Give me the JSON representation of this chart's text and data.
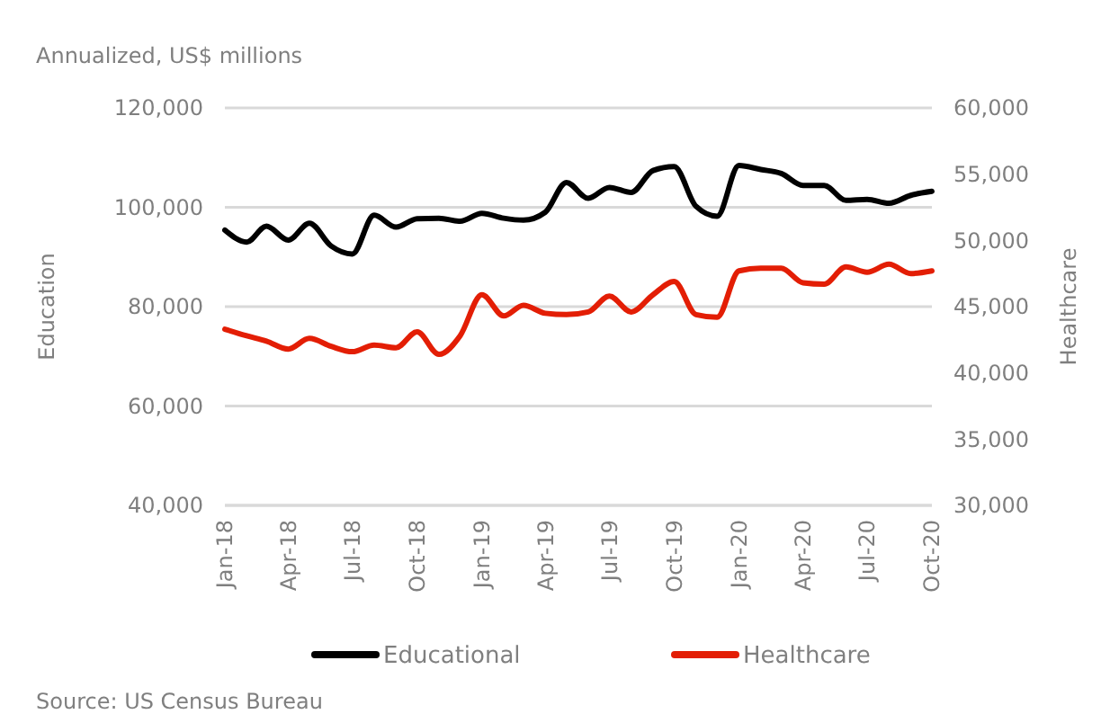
{
  "chart_data": {
    "type": "line",
    "title": "Annualized, US$ millions",
    "ylabel": "Education",
    "y2label": "Healthcare",
    "x": [
      "2018-01",
      "2018-02",
      "2018-03",
      "2018-04",
      "2018-05",
      "2018-06",
      "2018-07",
      "2018-08",
      "2018-09",
      "2018-10",
      "2018-11",
      "2018-12",
      "2019-01",
      "2019-02",
      "2019-03",
      "2019-04",
      "2019-05",
      "2019-06",
      "2019-07",
      "2019-08",
      "2019-09",
      "2019-10",
      "2019-11",
      "2019-12",
      "2020-01",
      "2020-02",
      "2020-03",
      "2020-04",
      "2020-05",
      "2020-06",
      "2020-07",
      "2020-08",
      "2020-09",
      "2020-10"
    ],
    "series": [
      {
        "name": "Educational",
        "color": "#000000",
        "values": [
          95400,
          93000,
          96200,
          93400,
          96800,
          92200,
          90600,
          98400,
          96000,
          97700,
          97800,
          97200,
          98800,
          97800,
          97400,
          99000,
          105000,
          101800,
          104000,
          103000,
          107400,
          108200,
          100200,
          98200,
          108400,
          107600,
          106800,
          104400,
          104400,
          101400,
          101600,
          100800,
          102400,
          103200
        ]
      },
      {
        "name": "Healthcare",
        "color": "#e31e05",
        "axis": "y2",
        "values": [
          43300,
          42800,
          42400,
          41800,
          42600,
          42000,
          41600,
          42100,
          41900,
          43100,
          41400,
          42800,
          45900,
          44300,
          45100,
          44500,
          44400,
          44600,
          45800,
          44600,
          45900,
          46900,
          44400,
          44200,
          47700,
          47900,
          47900,
          46800,
          46700,
          48000,
          47600,
          48200,
          47500,
          47700
        ]
      }
    ],
    "xlim": [
      "2018-01",
      "2020-10"
    ],
    "xticks": [
      {
        "value": "2018-01",
        "label": "Jan-18"
      },
      {
        "value": "2018-04",
        "label": "Apr-18"
      },
      {
        "value": "2018-07",
        "label": "Jul-18"
      },
      {
        "value": "2018-10",
        "label": "Oct-18"
      },
      {
        "value": "2019-01",
        "label": "Jan-19"
      },
      {
        "value": "2019-04",
        "label": "Apr-19"
      },
      {
        "value": "2019-07",
        "label": "Jul-19"
      },
      {
        "value": "2019-10",
        "label": "Oct-19"
      },
      {
        "value": "2020-01",
        "label": "Jan-20"
      },
      {
        "value": "2020-04",
        "label": "Apr-20"
      },
      {
        "value": "2020-07",
        "label": "Jul-20"
      },
      {
        "value": "2020-10",
        "label": "Oct-20"
      }
    ],
    "ylim": [
      40000,
      120000
    ],
    "yticks": [
      {
        "value": 40000,
        "label": "40,000"
      },
      {
        "value": 60000,
        "label": "60,000"
      },
      {
        "value": 80000,
        "label": "80,000"
      },
      {
        "value": 100000,
        "label": "100,000"
      },
      {
        "value": 120000,
        "label": "120,000"
      }
    ],
    "y2lim": [
      30000,
      60000
    ],
    "y2ticks": [
      {
        "value": 30000,
        "label": "30,000"
      },
      {
        "value": 35000,
        "label": "35,000"
      },
      {
        "value": 40000,
        "label": "40,000"
      },
      {
        "value": 45000,
        "label": "45,000"
      },
      {
        "value": 50000,
        "label": "50,000"
      },
      {
        "value": 55000,
        "label": "55,000"
      },
      {
        "value": 60000,
        "label": "60,000"
      }
    ],
    "grid": "y",
    "legend": "bottom",
    "line_style": "solid",
    "marker": "none",
    "annotations": [
      "Source: US Census Bureau"
    ]
  }
}
